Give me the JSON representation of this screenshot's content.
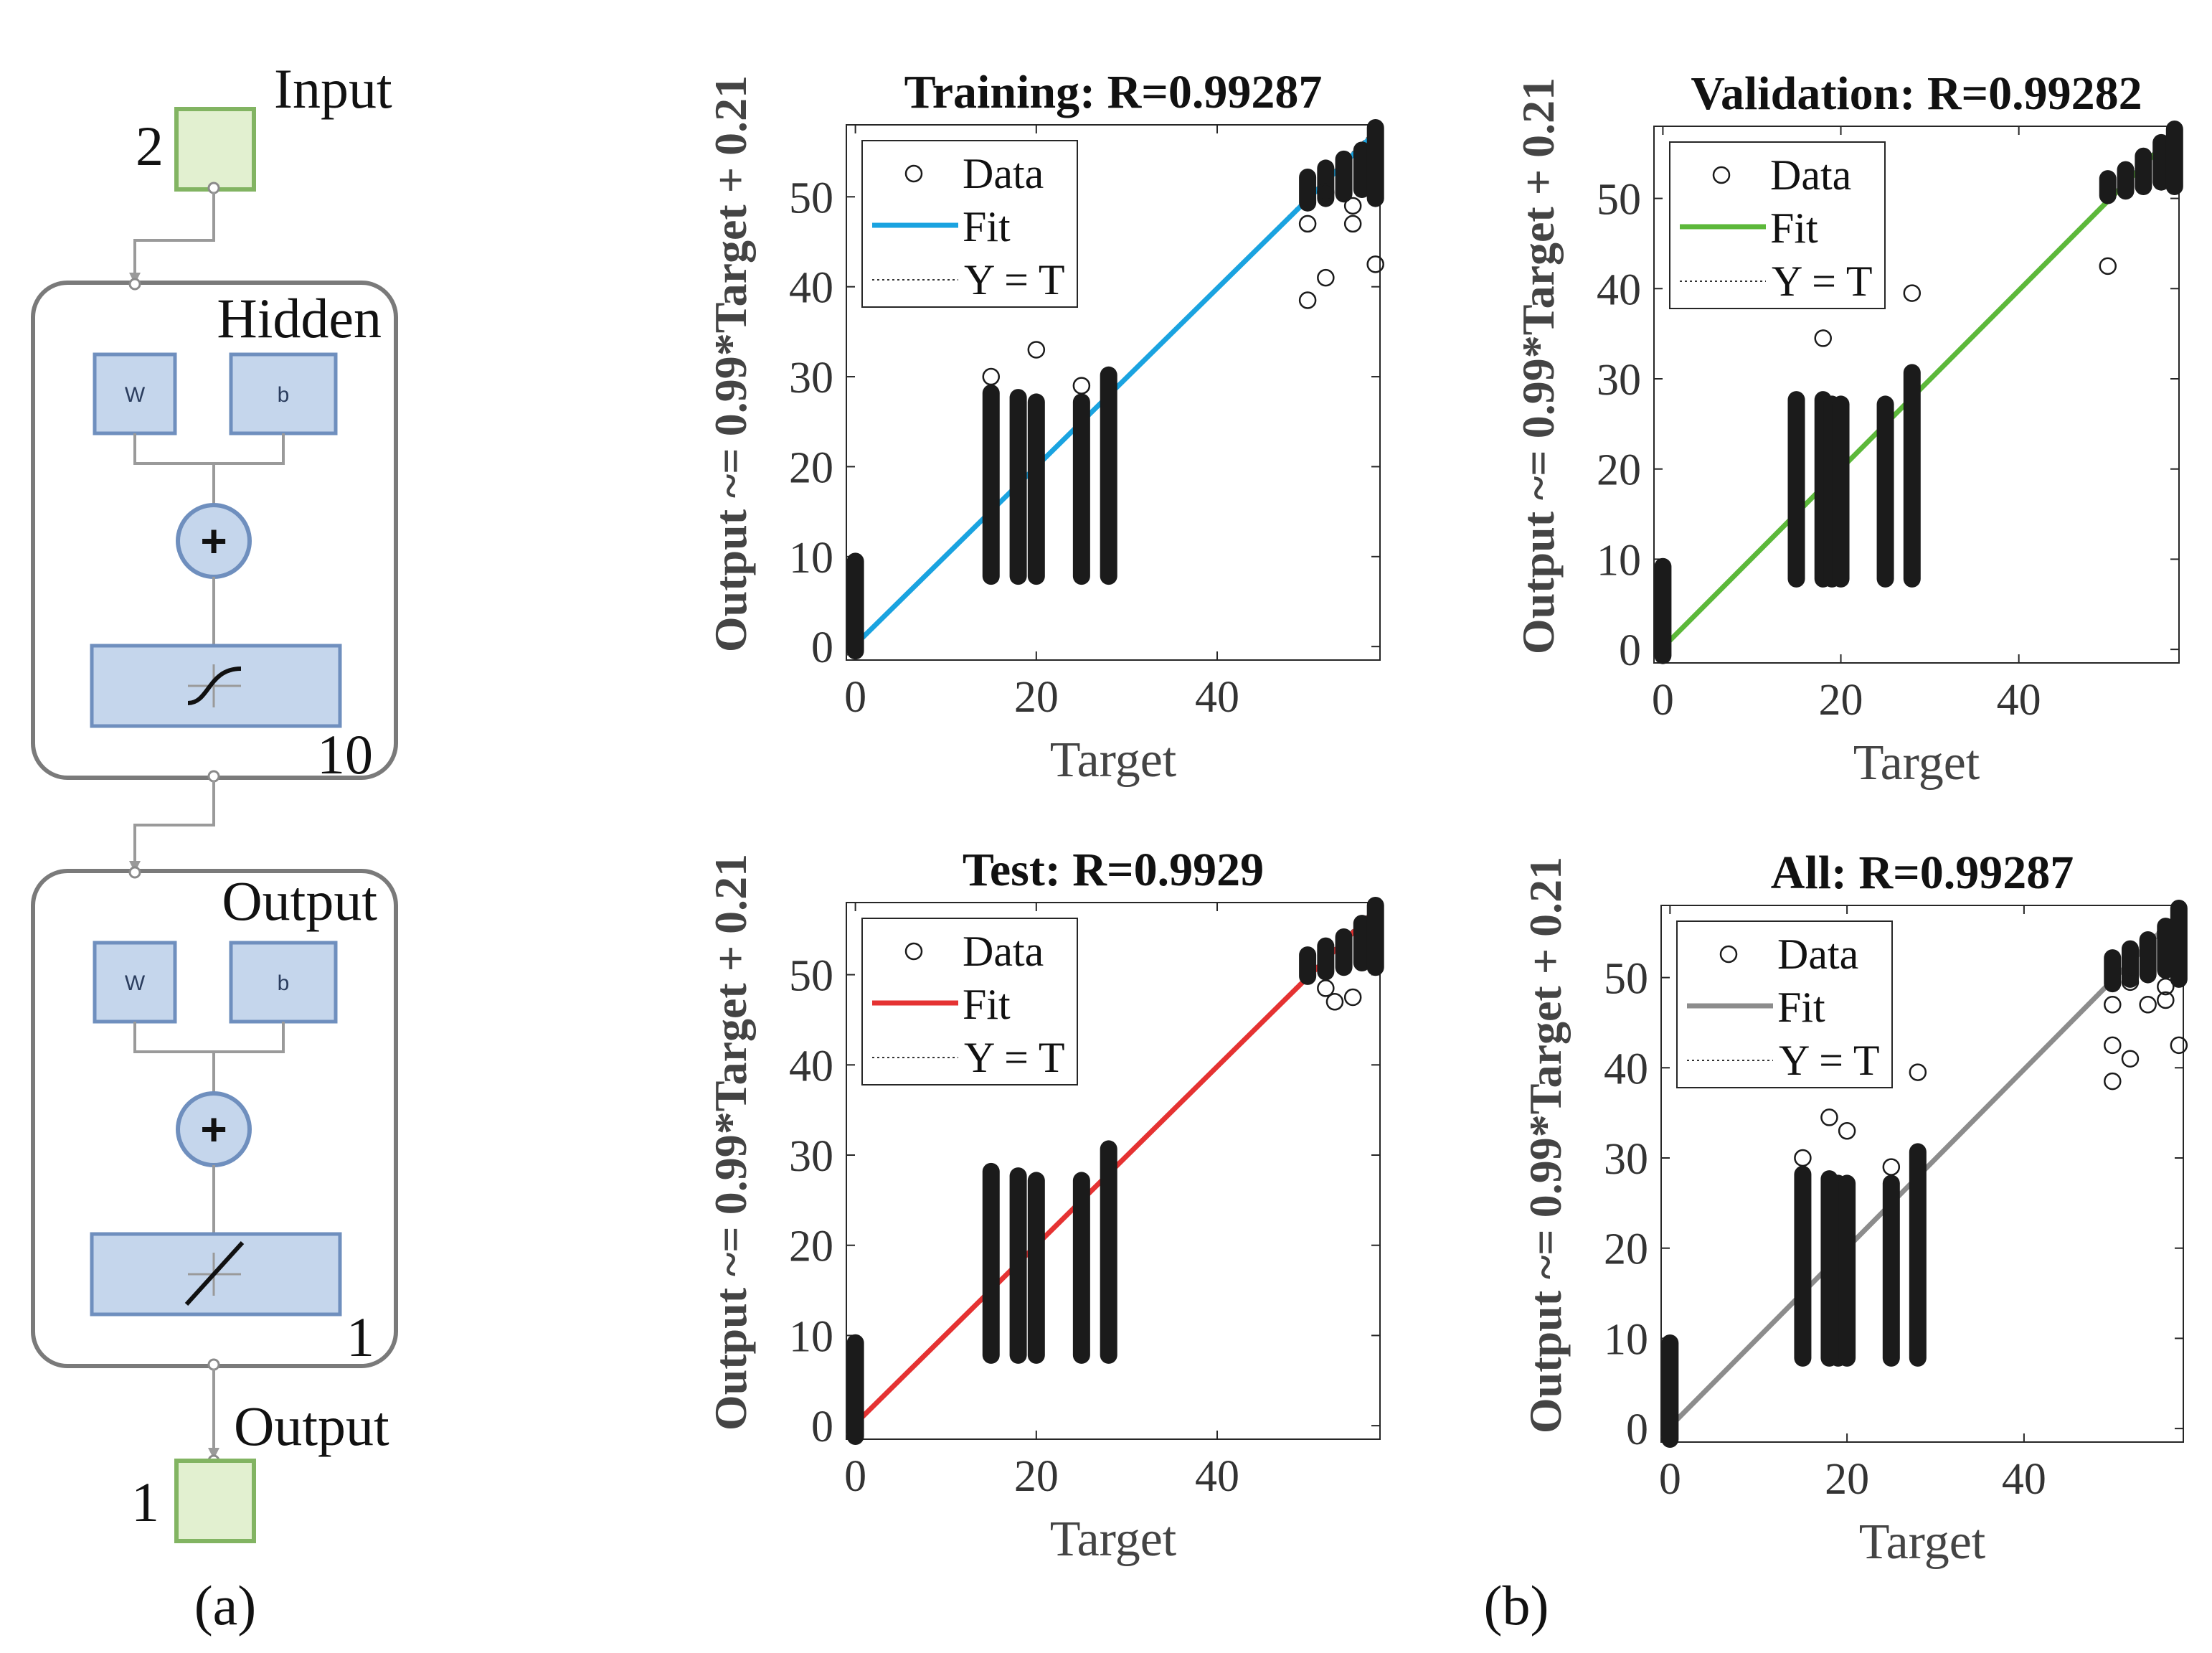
{
  "panel_labels": {
    "a": "(a)",
    "b": "(b)"
  },
  "network": {
    "input_label": "Input",
    "input_size": "2",
    "hidden_label": "Hidden",
    "hidden_size": "10",
    "output_layer_label": "Output",
    "output_layer_size": "1",
    "output_label": "Output",
    "output_size": "1",
    "weight_label": "W",
    "bias_label": "b",
    "sum_symbol": "+"
  },
  "colors": {
    "training_fit": "#1aa3e0",
    "validation_fit": "#5cb83a",
    "test_fit": "#e53232",
    "all_fit": "#8c8c8c",
    "block_fill": "#c5d6ec",
    "block_stroke": "#6f8fbe",
    "io_fill": "#e2f0d0",
    "io_stroke": "#82b462",
    "frame_stroke": "#7a7a7a",
    "markers": "#1b1b1b"
  },
  "chart_data": [
    {
      "type": "scatter",
      "title": "Training: R=0.99287",
      "xlabel": "Target",
      "ylabel": "Output ~= 0.99*Target + 0.21",
      "xlim": [
        -1,
        58
      ],
      "ylim": [
        -1.5,
        58
      ],
      "xticks": [
        0,
        20,
        40
      ],
      "yticks": [
        0,
        10,
        20,
        30,
        40,
        50
      ],
      "legend": [
        "Data",
        "Fit",
        "Y = T"
      ],
      "legend_position": "top-left",
      "fit": {
        "slope": 0.99,
        "intercept": 0.21,
        "color": "#1aa3e0"
      },
      "data_bands": [
        {
          "x": 0,
          "y_min": -0.8,
          "y_max": 9.8
        },
        {
          "x": 15,
          "y_min": 7.5,
          "y_max": 28.5
        },
        {
          "x": 18,
          "y_min": 7.5,
          "y_max": 28.0
        },
        {
          "x": 20,
          "y_min": 7.5,
          "y_max": 27.5
        },
        {
          "x": 25,
          "y_min": 7.5,
          "y_max": 27.5
        },
        {
          "x": 28,
          "y_min": 7.5,
          "y_max": 30.5
        },
        {
          "x": 50,
          "y_min": 49,
          "y_max": 52.5
        },
        {
          "x": 52,
          "y_min": 49.5,
          "y_max": 53.5
        },
        {
          "x": 54,
          "y_min": 50,
          "y_max": 54.5
        },
        {
          "x": 56,
          "y_min": 50.5,
          "y_max": 55.5
        },
        {
          "x": 57.5,
          "y_min": 49.5,
          "y_max": 58
        }
      ],
      "outliers": [
        [
          15,
          30
        ],
        [
          20,
          33
        ],
        [
          25,
          29
        ],
        [
          50,
          47
        ],
        [
          50,
          38.5
        ],
        [
          52,
          41
        ],
        [
          55,
          47
        ],
        [
          57.5,
          42.5
        ],
        [
          52,
          50.5
        ],
        [
          55,
          49
        ]
      ]
    },
    {
      "type": "scatter",
      "title": "Validation: R=0.99282",
      "xlabel": "Target",
      "ylabel": "Output ~= 0.99*Target + 0.21",
      "xlim": [
        -1,
        58
      ],
      "ylim": [
        -1.5,
        58
      ],
      "xticks": [
        0,
        20,
        40
      ],
      "yticks": [
        0,
        10,
        20,
        30,
        40,
        50
      ],
      "legend": [
        "Data",
        "Fit",
        "Y = T"
      ],
      "legend_position": "top-left",
      "fit": {
        "slope": 0.99,
        "intercept": 0.21,
        "color": "#5cb83a"
      },
      "data_bands": [
        {
          "x": 0,
          "y_min": -1.0,
          "y_max": 9.5
        },
        {
          "x": 15,
          "y_min": 7.5,
          "y_max": 28.0
        },
        {
          "x": 18,
          "y_min": 7.5,
          "y_max": 28.0
        },
        {
          "x": 19,
          "y_min": 7.5,
          "y_max": 27.5
        },
        {
          "x": 20,
          "y_min": 7.5,
          "y_max": 27.5
        },
        {
          "x": 25,
          "y_min": 7.5,
          "y_max": 27.5
        },
        {
          "x": 28,
          "y_min": 7.5,
          "y_max": 31.0
        },
        {
          "x": 50,
          "y_min": 50,
          "y_max": 52.5
        },
        {
          "x": 52,
          "y_min": 50.5,
          "y_max": 53.5
        },
        {
          "x": 54,
          "y_min": 51,
          "y_max": 55.0
        },
        {
          "x": 56,
          "y_min": 51.5,
          "y_max": 56.5
        },
        {
          "x": 57.5,
          "y_min": 51,
          "y_max": 58
        }
      ],
      "outliers": [
        [
          18,
          34.5
        ],
        [
          28,
          39.5
        ],
        [
          50,
          42.5
        ]
      ]
    },
    {
      "type": "scatter",
      "title": "Test: R=0.9929",
      "xlabel": "Target",
      "ylabel": "Output ~= 0.99*Target + 0.21",
      "xlim": [
        -1,
        58
      ],
      "ylim": [
        -1.5,
        58
      ],
      "xticks": [
        0,
        20,
        40
      ],
      "yticks": [
        0,
        10,
        20,
        30,
        40,
        50
      ],
      "legend": [
        "Data",
        "Fit",
        "Y = T"
      ],
      "legend_position": "top-left",
      "fit": {
        "slope": 0.99,
        "intercept": 0.21,
        "color": "#e53232"
      },
      "data_bands": [
        {
          "x": 0,
          "y_min": -1.5,
          "y_max": 9.5
        },
        {
          "x": 15,
          "y_min": 7.5,
          "y_max": 28.5
        },
        {
          "x": 18,
          "y_min": 7.5,
          "y_max": 28.0
        },
        {
          "x": 20,
          "y_min": 7.5,
          "y_max": 27.5
        },
        {
          "x": 25,
          "y_min": 7.5,
          "y_max": 27.5
        },
        {
          "x": 28,
          "y_min": 7.5,
          "y_max": 31.0
        },
        {
          "x": 50,
          "y_min": 49.5,
          "y_max": 52.5
        },
        {
          "x": 52,
          "y_min": 50,
          "y_max": 53.5
        },
        {
          "x": 54,
          "y_min": 50.5,
          "y_max": 54.5
        },
        {
          "x": 56,
          "y_min": 51,
          "y_max": 56.0
        },
        {
          "x": 57.5,
          "y_min": 50.5,
          "y_max": 58
        }
      ],
      "outliers": [
        [
          52,
          48.5
        ],
        [
          53,
          47
        ],
        [
          55,
          47.5
        ]
      ]
    },
    {
      "type": "scatter",
      "title": "All: R=0.99287",
      "xlabel": "Target",
      "ylabel": "Output ~= 0.99*Target + 0.21",
      "xlim": [
        -1,
        58
      ],
      "ylim": [
        -1.5,
        58
      ],
      "xticks": [
        0,
        20,
        40
      ],
      "yticks": [
        0,
        10,
        20,
        30,
        40,
        50
      ],
      "legend": [
        "Data",
        "Fit",
        "Y = T"
      ],
      "legend_position": "top-left",
      "fit": {
        "slope": 0.99,
        "intercept": 0.21,
        "color": "#8c8c8c"
      },
      "data_bands": [
        {
          "x": 0,
          "y_min": -1.5,
          "y_max": 9.8
        },
        {
          "x": 15,
          "y_min": 7.5,
          "y_max": 28.5
        },
        {
          "x": 18,
          "y_min": 7.5,
          "y_max": 28.0
        },
        {
          "x": 19,
          "y_min": 7.5,
          "y_max": 27.5
        },
        {
          "x": 20,
          "y_min": 7.5,
          "y_max": 27.5
        },
        {
          "x": 25,
          "y_min": 7.5,
          "y_max": 27.5
        },
        {
          "x": 28,
          "y_min": 7.5,
          "y_max": 31.0
        },
        {
          "x": 50,
          "y_min": 49,
          "y_max": 52.5
        },
        {
          "x": 52,
          "y_min": 49.5,
          "y_max": 53.5
        },
        {
          "x": 54,
          "y_min": 50,
          "y_max": 54.5
        },
        {
          "x": 56,
          "y_min": 50.5,
          "y_max": 56.0
        },
        {
          "x": 57.5,
          "y_min": 49.5,
          "y_max": 58
        }
      ],
      "outliers": [
        [
          15,
          30
        ],
        [
          18,
          34.5
        ],
        [
          20,
          33
        ],
        [
          25,
          29
        ],
        [
          28,
          39.5
        ],
        [
          50,
          47
        ],
        [
          50,
          42.5
        ],
        [
          52,
          41
        ],
        [
          50,
          38.5
        ],
        [
          54,
          47
        ],
        [
          56,
          47.5
        ],
        [
          57.5,
          42.5
        ],
        [
          52,
          49.5
        ],
        [
          56,
          49
        ]
      ]
    }
  ]
}
